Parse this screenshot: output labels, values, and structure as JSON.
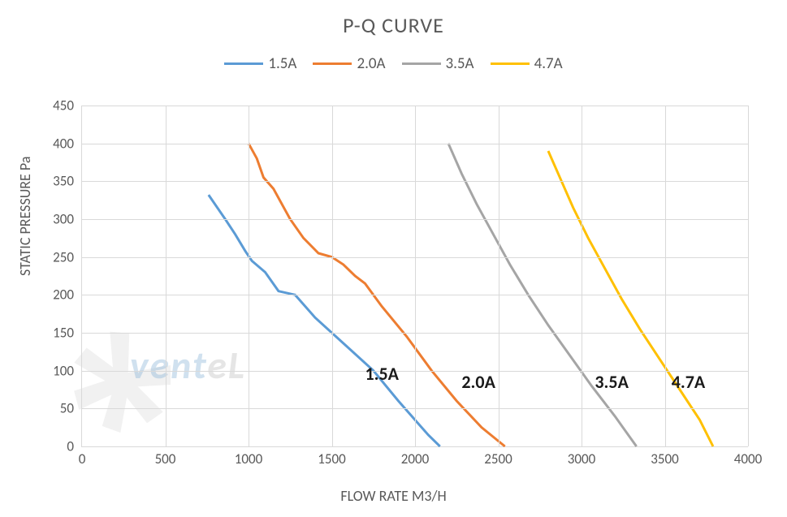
{
  "chart": {
    "title": "P-Q CURVE",
    "type": "line",
    "x_axis": {
      "label": "FLOW RATE M3/H",
      "min": 0,
      "max": 4000,
      "tick_step": 500,
      "ticks": [
        0,
        500,
        1000,
        1500,
        2000,
        2500,
        3000,
        3500,
        4000
      ]
    },
    "y_axis": {
      "label": "STATIC PRESSURE Pa",
      "min": 0,
      "max": 450,
      "tick_step": 50,
      "ticks": [
        0,
        50,
        100,
        150,
        200,
        250,
        300,
        350,
        400,
        450
      ]
    },
    "grid_color": "#d9d9d9",
    "background_color": "#ffffff",
    "title_fontsize": 26,
    "label_fontsize": 18,
    "tick_fontsize": 17,
    "legend_fontsize": 19,
    "line_width": 3,
    "series": [
      {
        "name": "1.5A",
        "color": "#5b9bd5",
        "points": [
          [
            760,
            332
          ],
          [
            860,
            300
          ],
          [
            920,
            280
          ],
          [
            980,
            258
          ],
          [
            1020,
            245
          ],
          [
            1100,
            230
          ],
          [
            1180,
            205
          ],
          [
            1280,
            200
          ],
          [
            1400,
            170
          ],
          [
            1500,
            150
          ],
          [
            1600,
            130
          ],
          [
            1750,
            100
          ],
          [
            1900,
            60
          ],
          [
            2000,
            35
          ],
          [
            2080,
            15
          ],
          [
            2150,
            0
          ]
        ],
        "inline_label": "1.5A",
        "inline_label_pos": [
          1700,
          110
        ]
      },
      {
        "name": "2.0A",
        "color": "#ed7d31",
        "points": [
          [
            1000,
            400
          ],
          [
            1050,
            380
          ],
          [
            1090,
            355
          ],
          [
            1150,
            340
          ],
          [
            1250,
            300
          ],
          [
            1330,
            275
          ],
          [
            1420,
            255
          ],
          [
            1500,
            250
          ],
          [
            1570,
            240
          ],
          [
            1640,
            225
          ],
          [
            1700,
            215
          ],
          [
            1800,
            185
          ],
          [
            1950,
            145
          ],
          [
            2100,
            100
          ],
          [
            2250,
            60
          ],
          [
            2400,
            25
          ],
          [
            2540,
            0
          ]
        ],
        "inline_label": "2.0A",
        "inline_label_pos": [
          2280,
          100
        ]
      },
      {
        "name": "3.5A",
        "color": "#a5a5a5",
        "points": [
          [
            2200,
            400
          ],
          [
            2280,
            360
          ],
          [
            2370,
            320
          ],
          [
            2470,
            280
          ],
          [
            2570,
            240
          ],
          [
            2680,
            200
          ],
          [
            2800,
            160
          ],
          [
            2930,
            120
          ],
          [
            3060,
            80
          ],
          [
            3200,
            40
          ],
          [
            3330,
            0
          ]
        ],
        "inline_label": "3.5A",
        "inline_label_pos": [
          3080,
          100
        ]
      },
      {
        "name": "4.7A",
        "color": "#ffc000",
        "points": [
          [
            2800,
            390
          ],
          [
            2870,
            355
          ],
          [
            2950,
            315
          ],
          [
            3040,
            275
          ],
          [
            3140,
            235
          ],
          [
            3240,
            195
          ],
          [
            3350,
            155
          ],
          [
            3470,
            115
          ],
          [
            3590,
            75
          ],
          [
            3710,
            35
          ],
          [
            3790,
            0
          ]
        ],
        "inline_label": "4.7A",
        "inline_label_pos": [
          3540,
          100
        ]
      }
    ],
    "watermark": {
      "text_part1": "vent",
      "text_part2": "eL",
      "color1": "rgba(120,170,210,0.35)",
      "color2": "rgba(180,180,180,0.35)"
    }
  }
}
